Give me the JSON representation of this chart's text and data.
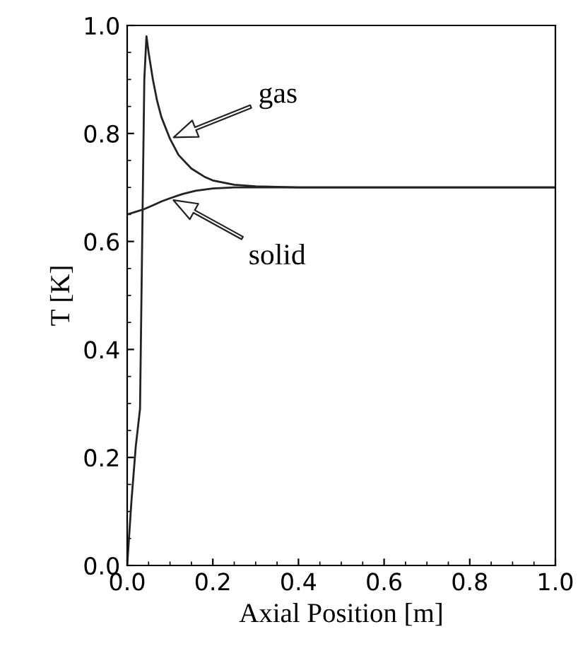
{
  "chart_data": {
    "type": "line",
    "xlabel": "Axial Position [m]",
    "ylabel": "T [K]",
    "xlim": [
      0.0,
      1.0
    ],
    "ylim": [
      0.0,
      1.0
    ],
    "xticks": [
      {
        "value": 0.0,
        "label": "0.0"
      },
      {
        "value": 0.2,
        "label": "0.2"
      },
      {
        "value": 0.4,
        "label": "0.4"
      },
      {
        "value": 0.6,
        "label": "0.6"
      },
      {
        "value": 0.8,
        "label": "0.8"
      },
      {
        "value": 1.0,
        "label": "1.0"
      }
    ],
    "yticks": [
      {
        "value": 0.0,
        "label": "0.0"
      },
      {
        "value": 0.2,
        "label": "0.2"
      },
      {
        "value": 0.4,
        "label": "0.4"
      },
      {
        "value": 0.6,
        "label": "0.6"
      },
      {
        "value": 0.8,
        "label": "0.8"
      },
      {
        "value": 1.0,
        "label": "1.0"
      }
    ],
    "series": [
      {
        "name": "gas",
        "color": "#222222",
        "x": [
          0.0,
          0.01,
          0.02,
          0.03,
          0.035,
          0.04,
          0.045,
          0.05,
          0.06,
          0.07,
          0.08,
          0.1,
          0.12,
          0.15,
          0.18,
          0.2,
          0.25,
          0.3,
          0.4,
          0.6,
          0.8,
          1.0
        ],
        "values": [
          0.0,
          0.12,
          0.22,
          0.29,
          0.6,
          0.9,
          0.98,
          0.95,
          0.9,
          0.86,
          0.83,
          0.79,
          0.76,
          0.735,
          0.72,
          0.713,
          0.705,
          0.702,
          0.7,
          0.7,
          0.7,
          0.7
        ]
      },
      {
        "name": "solid",
        "color": "#222222",
        "x": [
          0.0,
          0.02,
          0.04,
          0.06,
          0.08,
          0.1,
          0.13,
          0.16,
          0.2,
          0.25,
          0.3,
          0.4,
          0.6,
          0.8,
          1.0
        ],
        "values": [
          0.65,
          0.655,
          0.66,
          0.667,
          0.674,
          0.68,
          0.688,
          0.694,
          0.698,
          0.7,
          0.7,
          0.7,
          0.7,
          0.7,
          0.7
        ]
      }
    ],
    "grid": false,
    "legend": false
  }
}
